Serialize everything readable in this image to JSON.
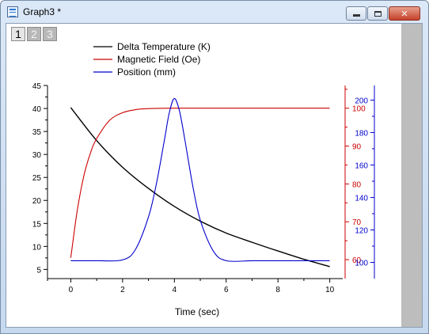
{
  "window": {
    "title": "Graph3 *",
    "min_label": "",
    "max_label": "",
    "close_label": "✕"
  },
  "layer_tabs": [
    "1",
    "2",
    "3"
  ],
  "colors": {
    "temperature": "#000000",
    "field": "#cc0000",
    "position": "#0000cc",
    "scroll_strip": "#bdbdbd"
  },
  "chart_data": {
    "type": "line",
    "xlabel": "Time (sec)",
    "xlim": [
      -0.9,
      10.5
    ],
    "x_ticks": [
      "0",
      "2",
      "4",
      "6",
      "8",
      "10"
    ],
    "legend": {
      "placement": "top-left",
      "entries": [
        "Delta Temperature (K)",
        "Magnetic Field (Oe)",
        "Position (mm)"
      ]
    },
    "axes": {
      "left": {
        "ylim": [
          3,
          45
        ],
        "ticks": [
          "5",
          "10",
          "15",
          "20",
          "25",
          "30",
          "35",
          "40",
          "45"
        ],
        "color": "#000000"
      },
      "right1": {
        "ylim": [
          55,
          106
        ],
        "ticks": [
          "60",
          "70",
          "80",
          "90",
          "100"
        ],
        "color": "#cc0000"
      },
      "right2": {
        "ylim": [
          90,
          209
        ],
        "ticks": [
          "100",
          "120",
          "140",
          "160",
          "180",
          "200"
        ],
        "color": "#0000cc"
      }
    },
    "series": [
      {
        "name": "Delta Temperature (K)",
        "axis": "left",
        "x": [
          0,
          1,
          2,
          3,
          4,
          5,
          6,
          7,
          8,
          9,
          10
        ],
        "y": [
          40.2,
          33.0,
          27.2,
          22.6,
          18.7,
          15.5,
          12.9,
          10.9,
          9.0,
          7.2,
          5.6
        ]
      },
      {
        "name": "Magnetic Field (Oe)",
        "axis": "right1",
        "x": [
          0,
          0.25,
          0.5,
          0.75,
          1,
          1.5,
          2,
          2.5,
          3,
          4,
          5,
          6,
          7,
          8,
          9,
          10
        ],
        "y": [
          60.5,
          73,
          82,
          88,
          92,
          96.8,
          98.8,
          99.6,
          99.9,
          100,
          100,
          100,
          100,
          100,
          100,
          100
        ]
      },
      {
        "name": "Position (mm)",
        "axis": "right2",
        "x": [
          0,
          1,
          2,
          2.5,
          3,
          3.3,
          3.6,
          3.8,
          4,
          4.2,
          4.4,
          4.7,
          5,
          5.5,
          6,
          7,
          8,
          9,
          10
        ],
        "y": [
          101,
          101,
          101.5,
          108,
          128,
          148,
          174,
          192,
          201,
          193,
          176,
          148,
          126,
          107,
          101,
          101,
          101,
          101,
          101
        ]
      }
    ]
  }
}
